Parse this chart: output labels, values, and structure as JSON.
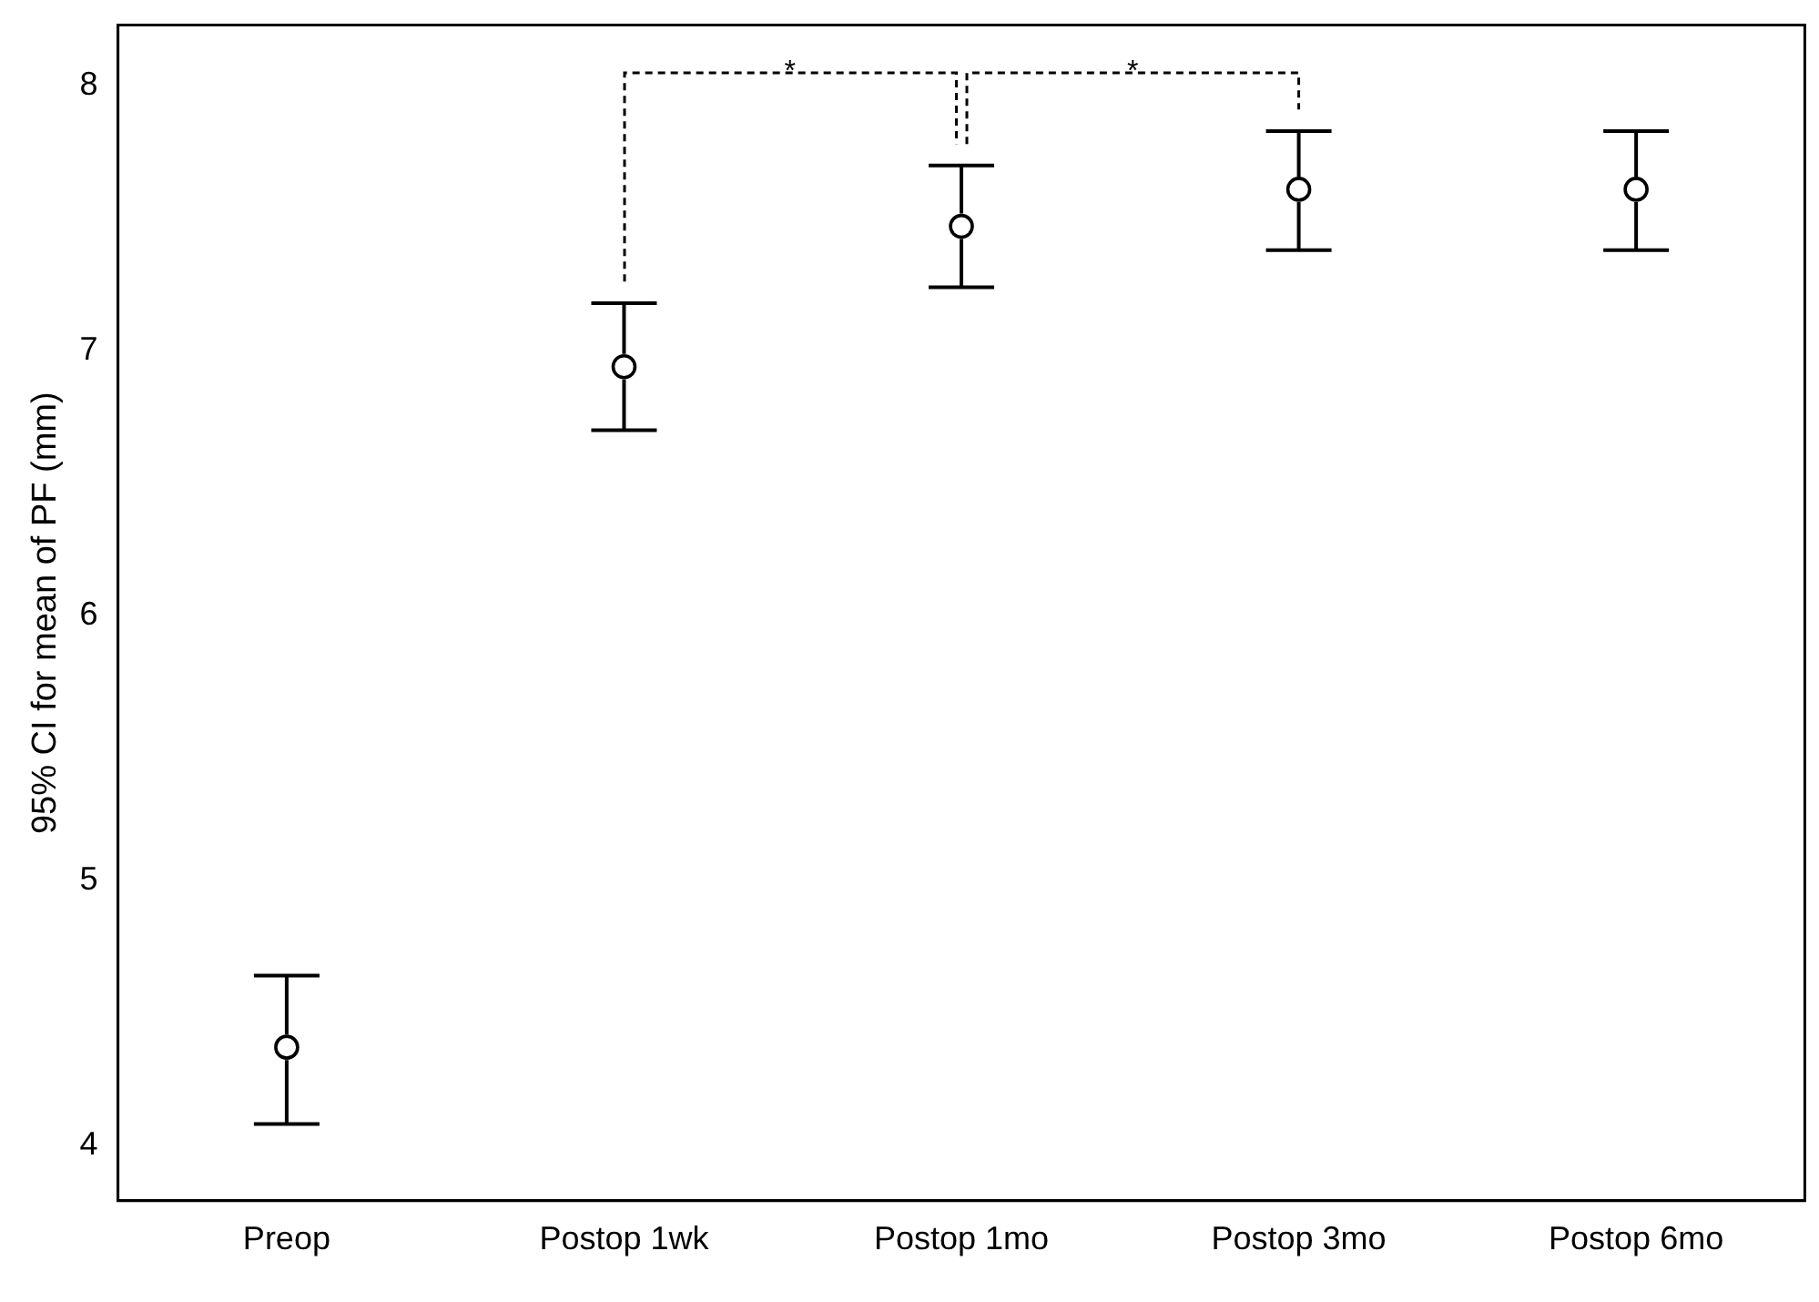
{
  "chart_data": {
    "type": "scatter",
    "ylabel": "95% CI for mean of PF (mm)",
    "categories": [
      "Preop",
      "Postop 1wk",
      "Postop 1mo",
      "Postop 3mo",
      "Postop 6mo"
    ],
    "values": [
      4.37,
      6.94,
      7.47,
      7.61,
      7.61
    ],
    "errors": [
      [
        4.08,
        4.64
      ],
      [
        6.7,
        7.18
      ],
      [
        7.24,
        7.7
      ],
      [
        7.38,
        7.83
      ],
      [
        7.38,
        7.83
      ]
    ],
    "color": "#000000",
    "marker": "circle",
    "grid": false,
    "legend": false,
    "ylim": [
      3.79,
      8.23
    ],
    "yticks": [
      4,
      5,
      6,
      7,
      8
    ],
    "annotations": [
      "*",
      "*"
    ]
  }
}
